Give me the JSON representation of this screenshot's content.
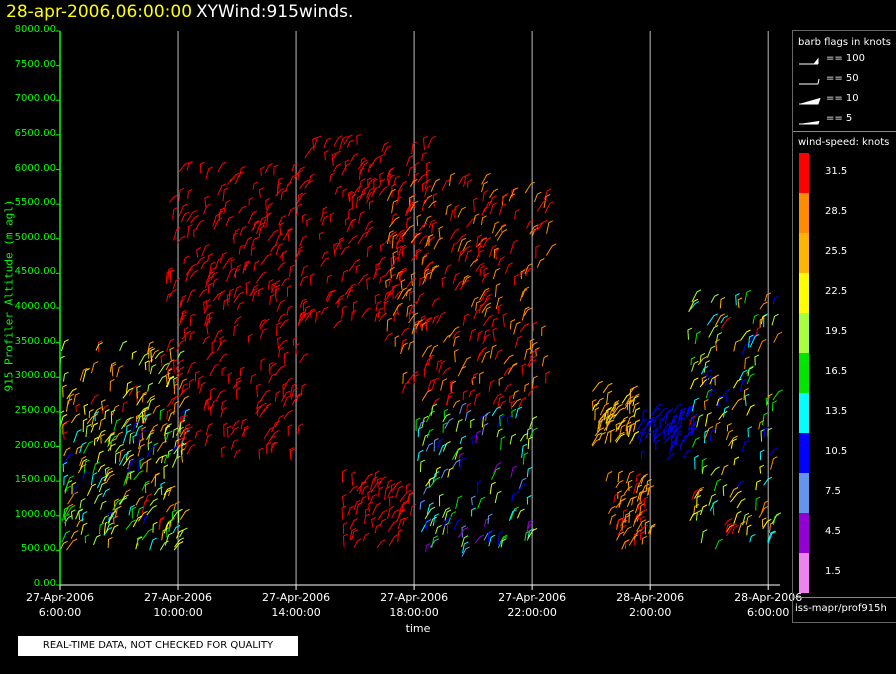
{
  "header": {
    "date": "28-apr-2006,06:00:00",
    "product": "XYWind:915winds."
  },
  "notice": "REAL-TIME DATA, NOT CHECKED FOR QUALITY",
  "source": "iss-mapr/prof915h",
  "chart_data": {
    "type": "scatter",
    "title": "",
    "xlabel": "time",
    "ylabel": "915 Profiler Altitude (m agl)",
    "ylim": [
      0,
      8000
    ],
    "y_ticks": [
      "8000.00",
      "7500.00",
      "7000.00",
      "6500.00",
      "6000.00",
      "5500.00",
      "5000.00",
      "4500.00",
      "4000.00",
      "3500.00",
      "3000.00",
      "2500.00",
      "2000.00",
      "1500.00",
      "1000.00",
      "500.00",
      "0.00"
    ],
    "xlim_hours": [
      0,
      24.4
    ],
    "x_ticks": [
      {
        "hour": 0,
        "date": "27-Apr-2006",
        "time": "6:00:00"
      },
      {
        "hour": 4,
        "date": "27-Apr-2006",
        "time": "10:00:00"
      },
      {
        "hour": 8,
        "date": "27-Apr-2006",
        "time": "14:00:00"
      },
      {
        "hour": 12,
        "date": "27-Apr-2006",
        "time": "18:00:00"
      },
      {
        "hour": 16,
        "date": "27-Apr-2006",
        "time": "22:00:00"
      },
      {
        "hour": 20,
        "date": "28-Apr-2006",
        "time": "2:00:00"
      },
      {
        "hour": 24,
        "date": "28-Apr-2006",
        "time": "6:00:00"
      }
    ],
    "grid": true,
    "legend_placement": "right",
    "barb_legend": {
      "title": "barb flags in knots",
      "items": [
        "== 100",
        "== 50",
        "== 10",
        "== 5"
      ]
    },
    "speed_legend": {
      "title": "wind-speed: knots",
      "bins": [
        {
          "label": "31.5",
          "color": "#ff0000"
        },
        {
          "label": "28.5",
          "color": "#ff8c00"
        },
        {
          "label": "25.5",
          "color": "#ffb400"
        },
        {
          "label": "22.5",
          "color": "#ffff00"
        },
        {
          "label": "19.5",
          "color": "#a8ff3c"
        },
        {
          "label": "16.5",
          "color": "#00e600"
        },
        {
          "label": "13.5",
          "color": "#00ffff"
        },
        {
          "label": "10.5",
          "color": "#0000ff"
        },
        {
          "label": "7.5",
          "color": "#6495ed"
        },
        {
          "label": "4.5",
          "color": "#9400d3"
        },
        {
          "label": "1.5",
          "color": "#ee82ee"
        }
      ]
    },
    "series": [
      {
        "x_range": [
          0,
          4.2
        ],
        "y_range": [
          500,
          3400
        ],
        "speed_low": 19.5,
        "speed_high": 31.5
      },
      {
        "x_range": [
          0,
          4.2
        ],
        "y_range": [
          500,
          2400
        ],
        "speed_low": 10.5,
        "speed_high": 22.5
      },
      {
        "x_range": [
          3.6,
          8.2
        ],
        "y_range": [
          1800,
          6000
        ],
        "speed_low": 31.5,
        "speed_high": 31.5
      },
      {
        "x_range": [
          8.0,
          12.6
        ],
        "y_range": [
          3600,
          6400
        ],
        "speed_low": 31.5,
        "speed_high": 31.5
      },
      {
        "x_range": [
          11.0,
          16.5
        ],
        "y_range": [
          2500,
          5800
        ],
        "speed_low": 28.5,
        "speed_high": 31.5
      },
      {
        "x_range": [
          9.5,
          12.0
        ],
        "y_range": [
          500,
          1500
        ],
        "speed_low": 31.5,
        "speed_high": 31.5
      },
      {
        "x_range": [
          12.0,
          16.0
        ],
        "y_range": [
          400,
          2500
        ],
        "speed_low": 4.5,
        "speed_high": 22.5
      },
      {
        "x_range": [
          18.5,
          20.0
        ],
        "y_range": [
          500,
          1500
        ],
        "speed_low": 25.5,
        "speed_high": 31.5
      },
      {
        "x_range": [
          18.0,
          19.5
        ],
        "y_range": [
          2000,
          2800
        ],
        "speed_low": 22.5,
        "speed_high": 28.5
      },
      {
        "x_range": [
          19.5,
          21.5
        ],
        "y_range": [
          1800,
          2500
        ],
        "speed_low": 10.5,
        "speed_high": 10.5
      },
      {
        "x_range": [
          21.3,
          24.2
        ],
        "y_range": [
          500,
          4100
        ],
        "speed_low": 10.5,
        "speed_high": 31.5
      }
    ]
  }
}
